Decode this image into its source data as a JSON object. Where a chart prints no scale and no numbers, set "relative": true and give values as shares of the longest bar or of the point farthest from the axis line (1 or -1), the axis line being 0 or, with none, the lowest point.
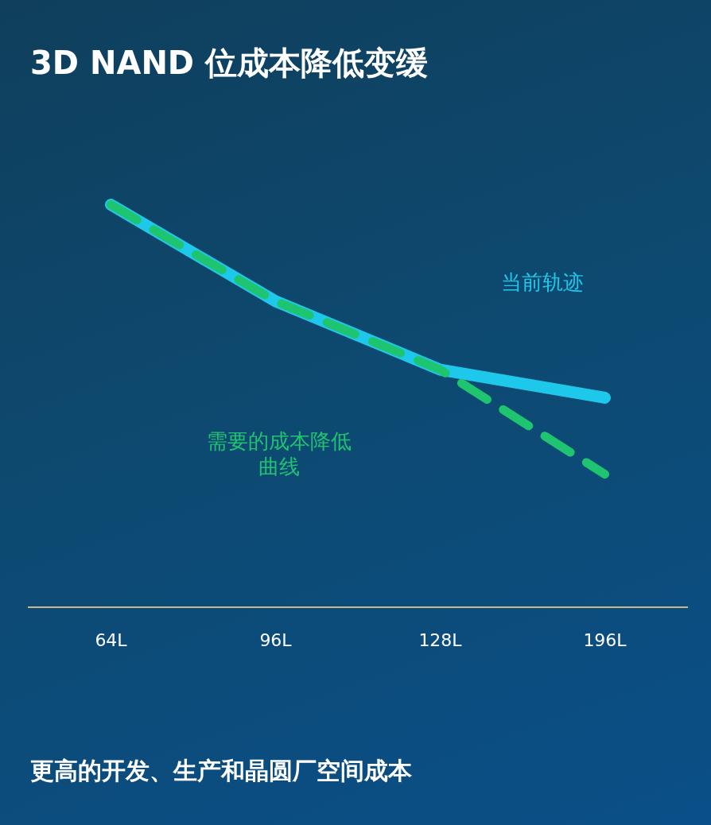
{
  "chart_data": {
    "type": "line",
    "title": "3D NAND 位成本降低变缓",
    "categories": [
      "64L",
      "96L",
      "128L",
      "196L"
    ],
    "relative": true,
    "grid": false,
    "legend": false,
    "marker": "none",
    "series": [
      {
        "name": "当前轨迹",
        "color": "#1ec8ea",
        "line_style": "solid",
        "values": [
          1,
          0.76,
          0.59,
          0.52
        ]
      },
      {
        "name": "需要的成本降低曲线",
        "color": "#1fc470",
        "line_style": "dashed",
        "values": [
          1,
          0.76,
          0.59,
          0.33
        ]
      }
    ],
    "annotations": [
      "更高的开发、生产和晶圆厂空间成本"
    ]
  }
}
